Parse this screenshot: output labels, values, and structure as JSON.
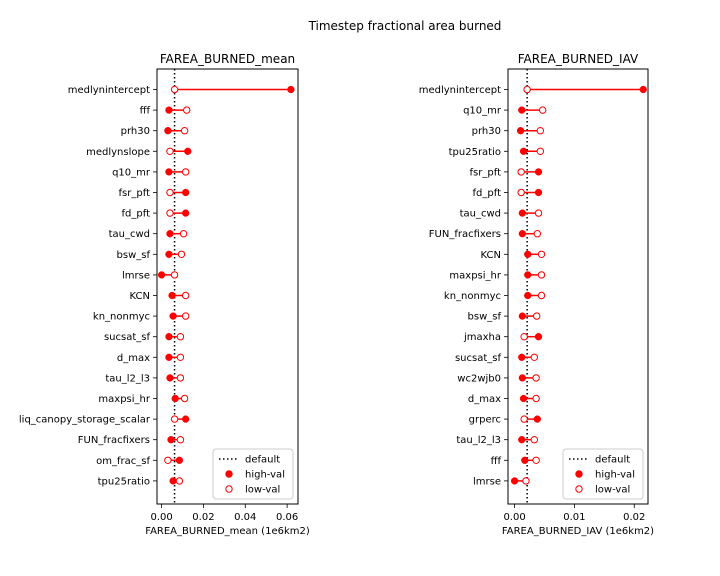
{
  "suptitle": "Timestep fractional area burned",
  "colors": {
    "marker": "#ff0000",
    "line": "#ff0000",
    "default_line": "#000000",
    "axes": "#000000"
  },
  "legend": {
    "default": "default",
    "high": "high-val",
    "low": "low-val",
    "placement": "lower right"
  },
  "chart_data": [
    {
      "type": "scatter",
      "title": "FAREA_BURNED_mean",
      "xlabel": "FAREA_BURNED_mean (1e6km2)",
      "xlim": [
        -0.0022,
        0.0652
      ],
      "xticks": [
        0.0,
        0.02,
        0.04,
        0.06
      ],
      "xticklabels": [
        "0.00",
        "0.02",
        "0.04",
        "0.06"
      ],
      "default": 0.0062,
      "categories": [
        "medlynintercept",
        "fff",
        "prh30",
        "medlynslope",
        "q10_mr",
        "fsr_pft",
        "fd_pft",
        "tau_cwd",
        "bsw_sf",
        "lmrse",
        "KCN",
        "kn_nonmyc",
        "sucsat_sf",
        "d_max",
        "tau_l2_l3",
        "maxpsi_hr",
        "liq_canopy_storage_scalar",
        "FUN_fracfixers",
        "om_frac_sf",
        "tpu25ratio"
      ],
      "series": [
        {
          "name": "high-val",
          "values": [
            0.0618,
            0.0035,
            0.003,
            0.0125,
            0.0035,
            0.0115,
            0.0115,
            0.004,
            0.0035,
            0.0,
            0.005,
            0.0055,
            0.0035,
            0.0035,
            0.004,
            0.0065,
            0.0115,
            0.0045,
            0.0085,
            0.0055
          ]
        },
        {
          "name": "low-val",
          "values": [
            0.0062,
            0.012,
            0.011,
            0.004,
            0.0115,
            0.004,
            0.004,
            0.0105,
            0.0095,
            0.0062,
            0.0115,
            0.0115,
            0.009,
            0.009,
            0.009,
            0.011,
            0.0062,
            0.009,
            0.003,
            0.0085
          ]
        }
      ]
    },
    {
      "type": "scatter",
      "title": "FAREA_BURNED_IAV",
      "xlabel": "FAREA_BURNED_IAV (1e6km2)",
      "xlim": [
        -0.0011,
        0.0223
      ],
      "xticks": [
        0.0,
        0.01,
        0.02
      ],
      "xticklabels": [
        "0.00",
        "0.01",
        "0.02"
      ],
      "default": 0.0021,
      "categories": [
        "medlynintercept",
        "q10_mr",
        "prh30",
        "tpu25ratio",
        "fsr_pft",
        "fd_pft",
        "tau_cwd",
        "FUN_fracfixers",
        "KCN",
        "maxpsi_hr",
        "kn_nonmyc",
        "bsw_sf",
        "jmaxha",
        "sucsat_sf",
        "wc2wjb0",
        "d_max",
        "grperc",
        "tau_l2_l3",
        "fff",
        "lmrse"
      ],
      "series": [
        {
          "name": "high-val",
          "values": [
            0.0215,
            0.0012,
            0.001,
            0.0015,
            0.004,
            0.004,
            0.0013,
            0.0013,
            0.0022,
            0.0022,
            0.0022,
            0.0013,
            0.004,
            0.0012,
            0.0013,
            0.0015,
            0.0038,
            0.0012,
            0.0017,
            0.0
          ]
        },
        {
          "name": "low-val",
          "values": [
            0.0021,
            0.0047,
            0.0043,
            0.0043,
            0.0011,
            0.0011,
            0.004,
            0.0038,
            0.0045,
            0.0045,
            0.0045,
            0.0037,
            0.0016,
            0.0033,
            0.0036,
            0.0036,
            0.0016,
            0.0033,
            0.0036,
            0.0019
          ]
        }
      ]
    }
  ]
}
